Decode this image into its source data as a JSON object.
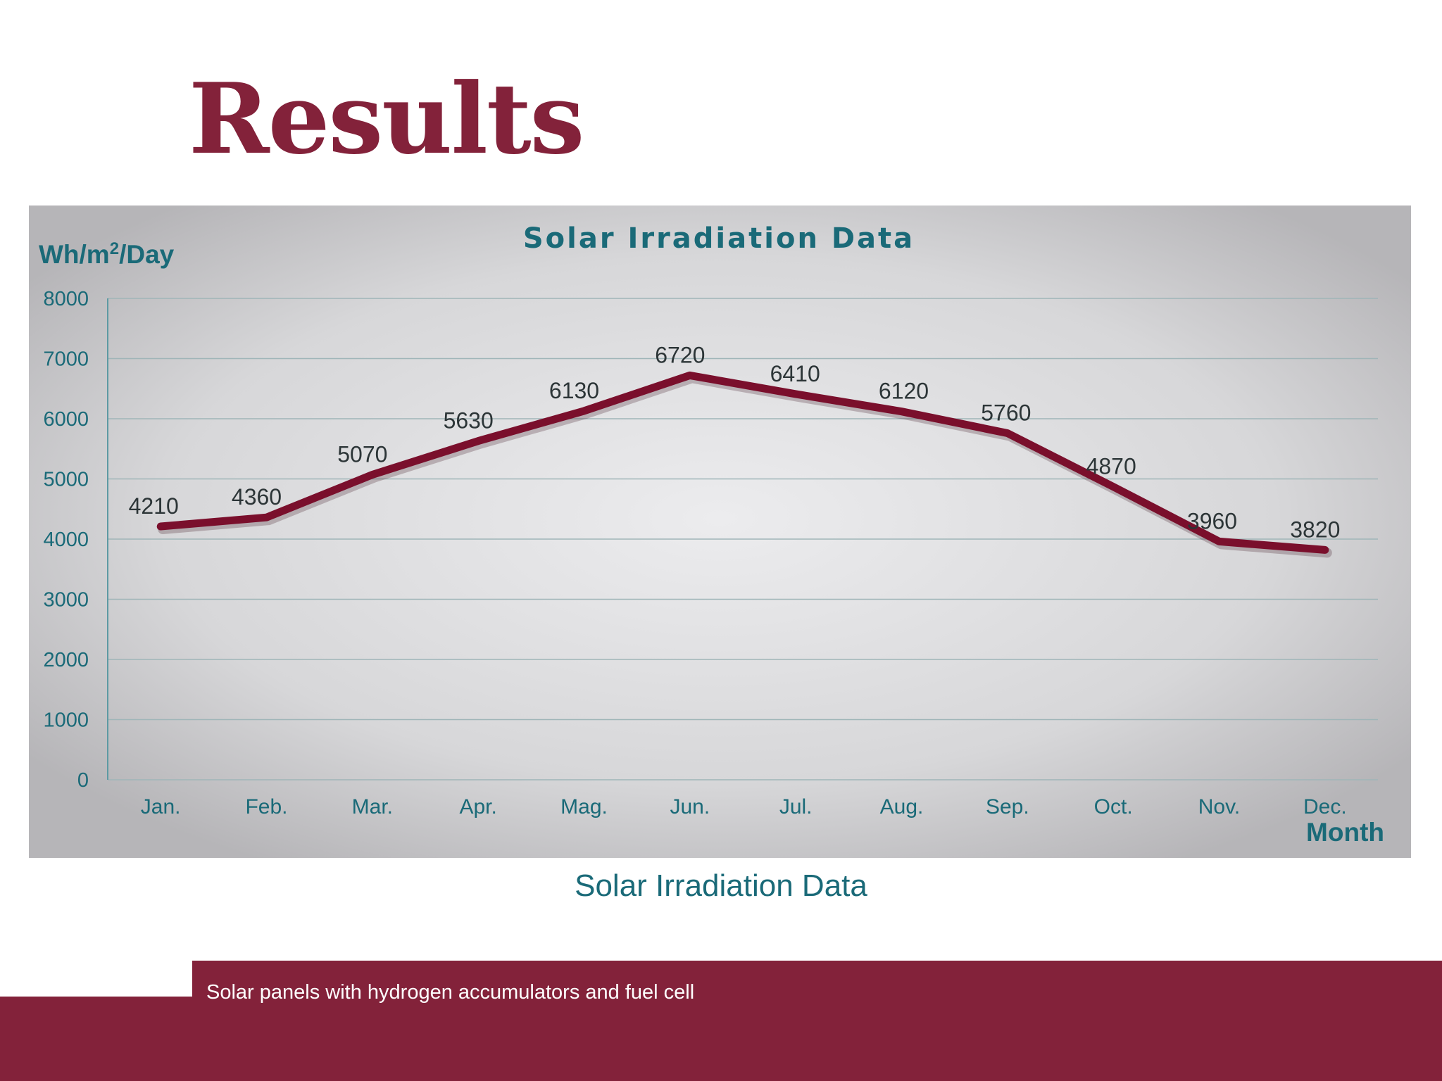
{
  "slide": {
    "title": "Results",
    "caption": "Solar Irradiation Data",
    "footer_text": "Solar panels with hydrogen accumulators and fuel cell"
  },
  "colors": {
    "title": "#83223a",
    "line": "#7a0f2c",
    "axis_text": "#1a6a78",
    "footer_bg": "#83223a"
  },
  "chart_data": {
    "type": "line",
    "title": "Solar Irradiation Data",
    "ylabel_prefix": "Wh/m",
    "ylabel_sup": "2",
    "ylabel_suffix": "/Day",
    "xlabel": "Month",
    "categories": [
      "Jan.",
      "Feb.",
      "Mar.",
      "Apr.",
      "Mag.",
      "Jun.",
      "Jul.",
      "Aug.",
      "Sep.",
      "Oct.",
      "Nov.",
      "Dec."
    ],
    "series": [
      {
        "values": [
          4210,
          4360,
          5070,
          5630,
          6130,
          6720,
          6410,
          6120,
          5760,
          4870,
          3960,
          3820
        ]
      }
    ],
    "data_labels": [
      "4210",
      "4360",
      "5070",
      "5630",
      "6130",
      "6720",
      "6410",
      "6120",
      "5760",
      "4870",
      "3960",
      "3820"
    ],
    "ylim": [
      0,
      8000
    ],
    "yticks": [
      0,
      1000,
      2000,
      3000,
      4000,
      5000,
      6000,
      7000,
      8000
    ],
    "grid": true,
    "legend": "none"
  }
}
